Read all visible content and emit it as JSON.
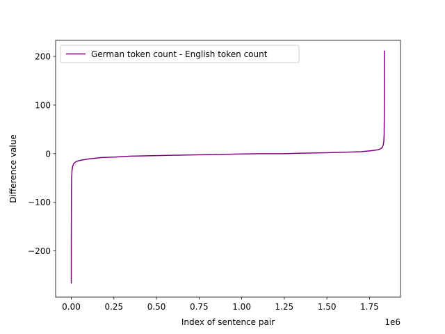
{
  "chart_data": {
    "type": "line",
    "title": "",
    "xlabel": "Index of sentence pair",
    "ylabel": "Difference value",
    "x_offset_label": "1e6",
    "xlim": [
      -0.092,
      1.932
    ],
    "ylim": [
      -295,
      233
    ],
    "x_ticks": [
      0.0,
      0.25,
      0.5,
      0.75,
      1.0,
      1.25,
      1.5,
      1.75
    ],
    "x_tick_labels": [
      "0.00",
      "0.25",
      "0.50",
      "0.75",
      "1.00",
      "1.25",
      "1.50",
      "1.75"
    ],
    "y_ticks": [
      -200,
      -100,
      0,
      100,
      200
    ],
    "y_tick_labels": [
      "−200",
      "−100",
      "0",
      "100",
      "200"
    ],
    "grid": false,
    "legend_position": "top-left",
    "series": [
      {
        "name": "German token count - English token count",
        "color": "#800080",
        "points": [
          [
            0.0,
            -267
          ],
          [
            0.0003,
            -150
          ],
          [
            0.001,
            -80
          ],
          [
            0.002,
            -50
          ],
          [
            0.004,
            -35
          ],
          [
            0.008,
            -26
          ],
          [
            0.015,
            -20
          ],
          [
            0.03,
            -16
          ],
          [
            0.05,
            -14
          ],
          [
            0.08,
            -12
          ],
          [
            0.12,
            -10
          ],
          [
            0.18,
            -8
          ],
          [
            0.25,
            -7
          ],
          [
            0.35,
            -5
          ],
          [
            0.5,
            -4
          ],
          [
            0.65,
            -3
          ],
          [
            0.8,
            -2
          ],
          [
            0.95,
            -1
          ],
          [
            1.1,
            0
          ],
          [
            1.25,
            0
          ],
          [
            1.35,
            1
          ],
          [
            1.5,
            2
          ],
          [
            1.6,
            3
          ],
          [
            1.7,
            4
          ],
          [
            1.76,
            6
          ],
          [
            1.8,
            8
          ],
          [
            1.815,
            10
          ],
          [
            1.825,
            13
          ],
          [
            1.83,
            17
          ],
          [
            1.834,
            25
          ],
          [
            1.836,
            40
          ],
          [
            1.837,
            80
          ],
          [
            1.8375,
            212
          ]
        ]
      }
    ]
  }
}
